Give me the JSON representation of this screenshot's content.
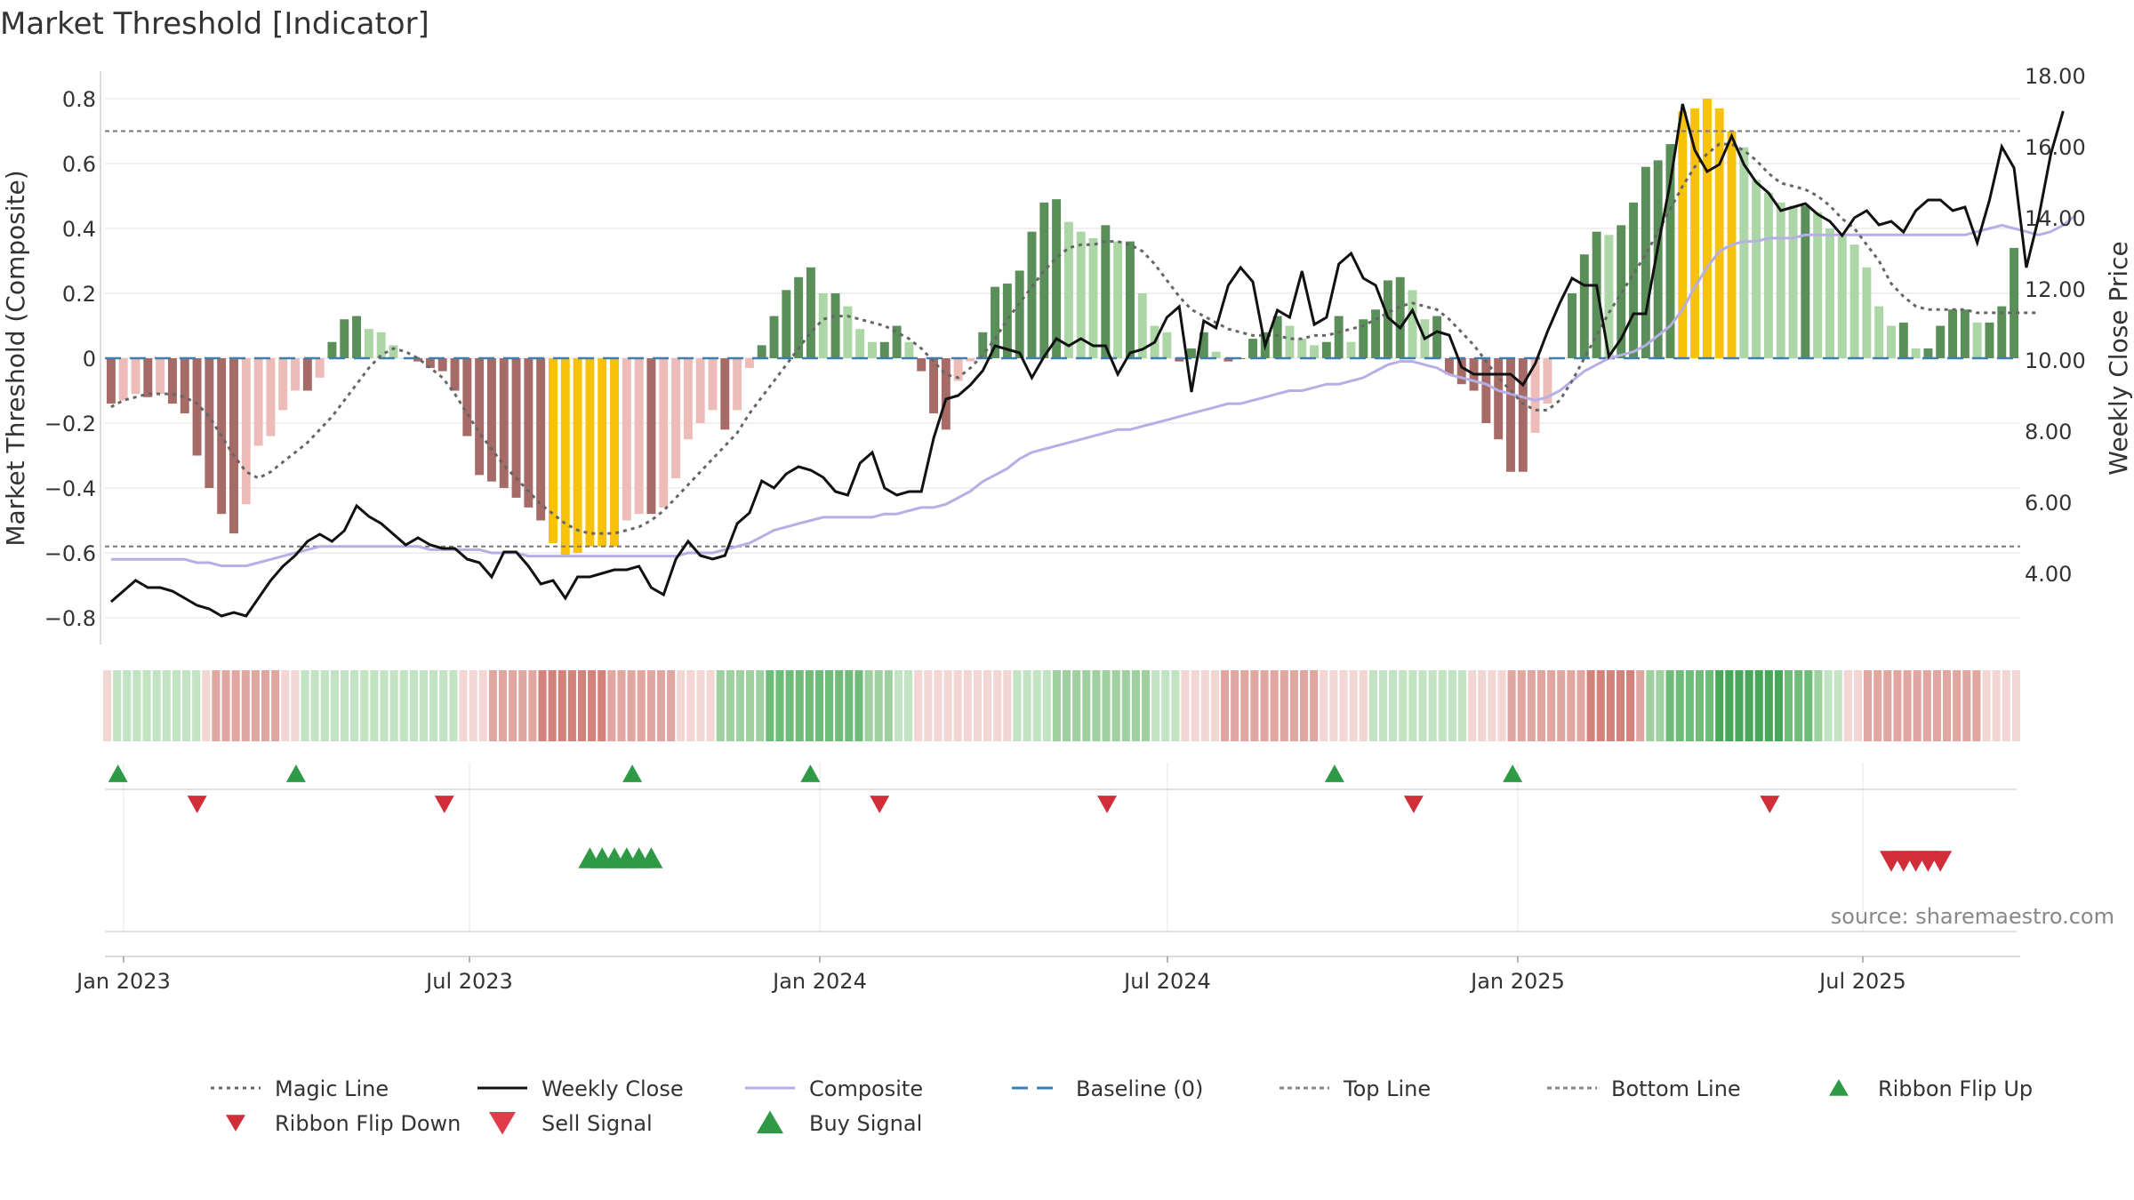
{
  "chart_data": {
    "type": "bar",
    "title": "Market Threshold [Indicator]",
    "ylabel_left": "Market Threshold (Composite)",
    "ylabel_right": "Weekly Close Price",
    "source": "source: sharemaestro.com",
    "x_ticks": [
      "Jan 2023",
      "Jul 2023",
      "Jan 2024",
      "Jul 2024",
      "Jan 2025",
      "Jul 2025"
    ],
    "y_left_ticks": [
      "0.8",
      "0.6",
      "0.4",
      "0.2",
      "0",
      "−0.2",
      "−0.4",
      "−0.6",
      "−0.8"
    ],
    "y_right_ticks": [
      "18.00",
      "16.00",
      "14.00",
      "12.00",
      "10.00",
      "8.00",
      "6.00",
      "4.00"
    ],
    "ylim_left": [
      -0.88,
      0.8
    ],
    "ylim_right": [
      2.5,
      18.0
    ],
    "top_line": 0.7,
    "bottom_line": -0.58,
    "baseline": 0,
    "colors": {
      "dark_green": "#5a8f5a",
      "light_green": "#acd6a6",
      "dark_red": "#a66b66",
      "light_red": "#edbcb8",
      "gold": "#f9c20a",
      "weekly_close": "#111111",
      "composite": "#b7aee6",
      "magic_line": "#666666",
      "baseline": "#3f7fb0",
      "signal_up": "#2e9a46",
      "signal_down": "#d02f3a"
    },
    "composite_bars": [
      -0.14,
      -0.13,
      -0.11,
      -0.12,
      -0.11,
      -0.14,
      -0.17,
      -0.3,
      -0.4,
      -0.48,
      -0.54,
      -0.45,
      -0.27,
      -0.24,
      -0.16,
      -0.1,
      -0.1,
      -0.06,
      0.05,
      0.12,
      0.13,
      0.09,
      0.08,
      0.04,
      0.0,
      -0.01,
      -0.03,
      -0.04,
      -0.1,
      -0.24,
      -0.36,
      -0.38,
      -0.4,
      -0.43,
      -0.46,
      -0.5,
      -0.57,
      -0.61,
      -0.6,
      -0.58,
      -0.58,
      -0.58,
      -0.5,
      -0.48,
      -0.48,
      -0.46,
      -0.37,
      -0.25,
      -0.2,
      -0.16,
      -0.22,
      -0.16,
      -0.03,
      0.04,
      0.13,
      0.21,
      0.25,
      0.28,
      0.2,
      0.2,
      0.16,
      0.09,
      0.05,
      0.05,
      0.1,
      0.05,
      -0.04,
      -0.17,
      -0.22,
      -0.07,
      -0.01,
      0.08,
      0.22,
      0.23,
      0.27,
      0.39,
      0.48,
      0.49,
      0.42,
      0.39,
      0.37,
      0.41,
      0.36,
      0.36,
      0.2,
      0.1,
      0.08,
      -0.01,
      0.03,
      0.08,
      0.02,
      -0.01,
      0.0,
      0.06,
      0.08,
      0.13,
      0.1,
      0.06,
      0.04,
      0.05,
      0.13,
      0.05,
      0.12,
      0.15,
      0.24,
      0.25,
      0.21,
      0.12,
      0.13,
      -0.05,
      -0.08,
      -0.1,
      -0.2,
      -0.25,
      -0.35,
      -0.35,
      -0.23,
      -0.14,
      0.0,
      0.2,
      0.32,
      0.39,
      0.38,
      0.41,
      0.48,
      0.59,
      0.61,
      0.66,
      0.76,
      0.77,
      0.8,
      0.77,
      0.7,
      0.65,
      0.55,
      0.51,
      0.48,
      0.47,
      0.47,
      0.45,
      0.4,
      0.38,
      0.35,
      0.28,
      0.16,
      0.1,
      0.11,
      0.03,
      0.03,
      0.1,
      0.15,
      0.15,
      0.11,
      0.11,
      0.16,
      0.34
    ],
    "weekly_close": [
      3.2,
      3.5,
      3.8,
      3.6,
      3.6,
      3.5,
      3.3,
      3.1,
      3.0,
      2.8,
      2.9,
      2.8,
      3.3,
      3.8,
      4.2,
      4.5,
      4.9,
      5.1,
      4.9,
      5.2,
      5.9,
      5.6,
      5.4,
      5.1,
      4.8,
      5.0,
      4.8,
      4.7,
      4.7,
      4.4,
      4.3,
      3.9,
      4.6,
      4.6,
      4.2,
      3.7,
      3.8,
      3.3,
      3.9,
      3.9,
      4.0,
      4.1,
      4.1,
      4.2,
      3.6,
      3.4,
      4.4,
      4.9,
      4.5,
      4.4,
      4.5,
      5.4,
      5.7,
      6.6,
      6.4,
      6.8,
      7.0,
      6.9,
      6.7,
      6.3,
      6.2,
      7.1,
      7.4,
      6.4,
      6.2,
      6.3,
      6.3,
      7.8,
      8.9,
      9.0,
      9.3,
      9.7,
      10.4,
      10.3,
      10.2,
      9.5,
      10.1,
      10.6,
      10.4,
      10.6,
      10.4,
      10.4,
      9.6,
      10.2,
      10.3,
      10.5,
      11.2,
      11.5,
      9.1,
      11.1,
      10.9,
      12.1,
      12.6,
      12.2,
      10.4,
      11.4,
      11.2,
      12.5,
      11.0,
      11.2,
      12.7,
      13.0,
      12.3,
      12.1,
      11.2,
      10.9,
      11.4,
      10.6,
      10.8,
      10.7,
      9.8,
      9.6,
      9.6,
      9.6,
      9.6,
      9.3,
      9.9,
      10.8,
      11.6,
      12.3,
      12.1,
      12.1,
      10.1,
      10.6,
      11.3,
      11.3,
      13.2,
      15.0,
      17.2,
      15.9,
      15.3,
      15.5,
      16.3,
      15.5,
      15.0,
      14.7,
      14.2,
      14.3,
      14.4,
      14.1,
      13.9,
      13.5,
      14.0,
      14.2,
      13.8,
      13.9,
      13.6,
      14.2,
      14.5,
      14.5,
      14.2,
      14.3,
      13.3,
      14.5,
      16.0,
      15.4,
      12.6,
      14.0,
      15.8,
      17.0
    ],
    "composite_line": [
      -0.62,
      -0.62,
      -0.62,
      -0.62,
      -0.62,
      -0.62,
      -0.62,
      -0.63,
      -0.63,
      -0.64,
      -0.64,
      -0.64,
      -0.63,
      -0.62,
      -0.61,
      -0.6,
      -0.59,
      -0.58,
      -0.58,
      -0.58,
      -0.58,
      -0.58,
      -0.58,
      -0.58,
      -0.58,
      -0.58,
      -0.59,
      -0.59,
      -0.59,
      -0.59,
      -0.59,
      -0.6,
      -0.6,
      -0.6,
      -0.61,
      -0.61,
      -0.61,
      -0.61,
      -0.61,
      -0.61,
      -0.61,
      -0.61,
      -0.61,
      -0.61,
      -0.61,
      -0.61,
      -0.61,
      -0.6,
      -0.6,
      -0.6,
      -0.59,
      -0.58,
      -0.57,
      -0.55,
      -0.53,
      -0.52,
      -0.51,
      -0.5,
      -0.49,
      -0.49,
      -0.49,
      -0.49,
      -0.49,
      -0.48,
      -0.48,
      -0.47,
      -0.46,
      -0.46,
      -0.45,
      -0.43,
      -0.41,
      -0.38,
      -0.36,
      -0.34,
      -0.31,
      -0.29,
      -0.28,
      -0.27,
      -0.26,
      -0.25,
      -0.24,
      -0.23,
      -0.22,
      -0.22,
      -0.21,
      -0.2,
      -0.19,
      -0.18,
      -0.17,
      -0.16,
      -0.15,
      -0.14,
      -0.14,
      -0.13,
      -0.12,
      -0.11,
      -0.1,
      -0.1,
      -0.09,
      -0.08,
      -0.08,
      -0.07,
      -0.06,
      -0.04,
      -0.02,
      -0.01,
      -0.01,
      -0.02,
      -0.03,
      -0.05,
      -0.06,
      -0.07,
      -0.08,
      -0.1,
      -0.11,
      -0.12,
      -0.13,
      -0.12,
      -0.1,
      -0.07,
      -0.04,
      -0.02,
      0.0,
      0.01,
      0.02,
      0.04,
      0.07,
      0.1,
      0.15,
      0.22,
      0.28,
      0.33,
      0.35,
      0.36,
      0.36,
      0.37,
      0.37,
      0.37,
      0.38,
      0.38,
      0.38,
      0.38,
      0.38,
      0.38,
      0.38,
      0.38,
      0.38,
      0.38,
      0.38,
      0.38,
      0.38,
      0.38,
      0.39,
      0.4,
      0.41,
      0.4,
      0.39,
      0.38,
      0.39,
      0.41,
      0.44
    ],
    "magic_line": [
      -0.15,
      -0.13,
      -0.12,
      -0.11,
      -0.11,
      -0.11,
      -0.12,
      -0.14,
      -0.18,
      -0.24,
      -0.3,
      -0.35,
      -0.37,
      -0.35,
      -0.32,
      -0.29,
      -0.26,
      -0.22,
      -0.18,
      -0.13,
      -0.08,
      -0.03,
      0.01,
      0.03,
      0.02,
      0.0,
      -0.03,
      -0.06,
      -0.11,
      -0.17,
      -0.23,
      -0.28,
      -0.33,
      -0.37,
      -0.41,
      -0.45,
      -0.48,
      -0.51,
      -0.53,
      -0.54,
      -0.54,
      -0.54,
      -0.53,
      -0.52,
      -0.5,
      -0.47,
      -0.43,
      -0.39,
      -0.35,
      -0.31,
      -0.27,
      -0.23,
      -0.17,
      -0.12,
      -0.07,
      -0.02,
      0.03,
      0.08,
      0.12,
      0.13,
      0.13,
      0.12,
      0.11,
      0.1,
      0.08,
      0.06,
      0.03,
      -0.01,
      -0.05,
      -0.06,
      -0.03,
      0.01,
      0.06,
      0.12,
      0.17,
      0.22,
      0.27,
      0.31,
      0.34,
      0.35,
      0.35,
      0.36,
      0.36,
      0.35,
      0.33,
      0.29,
      0.24,
      0.19,
      0.15,
      0.13,
      0.11,
      0.09,
      0.08,
      0.07,
      0.07,
      0.07,
      0.06,
      0.06,
      0.07,
      0.07,
      0.08,
      0.09,
      0.1,
      0.12,
      0.14,
      0.16,
      0.17,
      0.16,
      0.15,
      0.12,
      0.08,
      0.04,
      -0.01,
      -0.06,
      -0.1,
      -0.14,
      -0.16,
      -0.16,
      -0.13,
      -0.07,
      0.0,
      0.07,
      0.14,
      0.2,
      0.26,
      0.32,
      0.39,
      0.46,
      0.53,
      0.59,
      0.63,
      0.66,
      0.66,
      0.64,
      0.61,
      0.57,
      0.54,
      0.53,
      0.52,
      0.5,
      0.47,
      0.43,
      0.4,
      0.35,
      0.3,
      0.23,
      0.19,
      0.16,
      0.15,
      0.15,
      0.15,
      0.15,
      0.14,
      0.14,
      0.14,
      0.14,
      0.14,
      0.14
    ],
    "ribbon": [
      -1,
      1,
      1,
      1,
      1,
      1,
      1,
      1,
      1,
      1,
      -1,
      -2,
      -2,
      -2,
      -2,
      -2,
      -2,
      -2,
      -1,
      -1,
      1,
      1,
      1,
      1,
      1,
      1,
      1,
      1,
      1,
      1,
      1,
      1,
      1,
      1,
      1,
      1,
      -1,
      -1,
      -1,
      -2,
      -2,
      -2,
      -2,
      -2,
      -3,
      -3,
      -3,
      -3,
      -3,
      -3,
      -3,
      -2,
      -2,
      -2,
      -2,
      -2,
      -2,
      -2,
      -1,
      -1,
      -1,
      -1,
      2,
      2,
      2,
      2,
      2,
      3,
      3,
      3,
      3,
      3,
      3,
      3,
      3,
      3,
      3,
      2,
      2,
      2,
      1,
      1,
      -1,
      -1,
      -1,
      -1,
      -1,
      -1,
      -1,
      -1,
      -1,
      -1,
      1,
      1,
      1,
      1,
      2,
      2,
      2,
      2,
      2,
      2,
      2,
      2,
      2,
      2,
      1,
      1,
      1,
      -1,
      -1,
      -1,
      -1,
      -2,
      -2,
      -2,
      -2,
      -2,
      -2,
      -2,
      -2,
      -2,
      -2,
      -1,
      -1,
      -1,
      -1,
      -1,
      1,
      1,
      1,
      1,
      1,
      1,
      1,
      1,
      1,
      1,
      -1,
      -1,
      -1,
      -1,
      -2,
      -2,
      -2,
      -2,
      -2,
      -2,
      -2,
      -2,
      -3,
      -3,
      -3,
      -3,
      -3,
      -2,
      2,
      2,
      3,
      3,
      3,
      3,
      3,
      4,
      4,
      4,
      4,
      4,
      4,
      4,
      3,
      3,
      3,
      2,
      1,
      1,
      -1,
      -1,
      -2,
      -2,
      -2,
      -2,
      -2,
      -2,
      -2,
      -2,
      -2,
      -2,
      -2,
      -2,
      -1,
      -1,
      -1,
      -1
    ],
    "ribbon_flip_up": [
      1,
      19,
      53,
      71,
      124,
      142
    ],
    "ribbon_flip_down": [
      9,
      34,
      78,
      101,
      132,
      168
    ],
    "buy_signals": [
      39,
      40,
      41,
      42,
      43,
      44
    ],
    "sell_signals": [
      145,
      146,
      147,
      148,
      149
    ],
    "legend": [
      {
        "label": "Magic Line",
        "marker": "dotted-line"
      },
      {
        "label": "Weekly Close",
        "marker": "solid-line"
      },
      {
        "label": "Composite",
        "marker": "solid-line"
      },
      {
        "label": "Baseline (0)",
        "marker": "dashed-line"
      },
      {
        "label": "Top Line",
        "marker": "dotted-line"
      },
      {
        "label": "Bottom Line",
        "marker": "dotted-line"
      },
      {
        "label": "Ribbon Flip Up",
        "marker": "triangle-up"
      },
      {
        "label": "Ribbon Flip Down",
        "marker": "triangle-down"
      },
      {
        "label": "Sell Signal",
        "marker": "triangle-down"
      },
      {
        "label": "Buy Signal",
        "marker": "triangle-up"
      }
    ]
  }
}
